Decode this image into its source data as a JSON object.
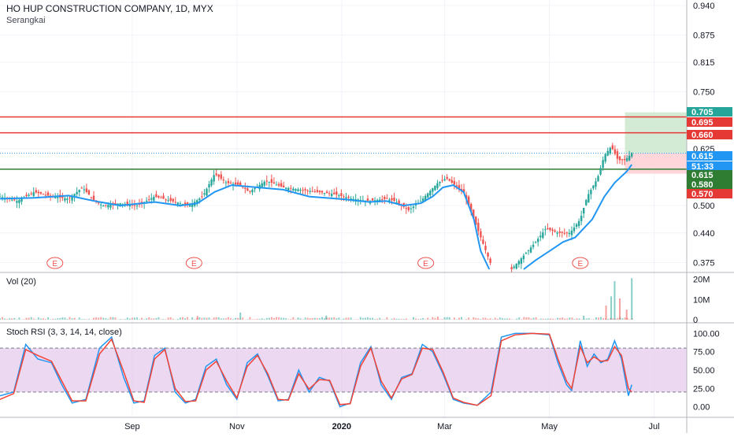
{
  "header": {
    "title": "HO HUP CONSTRUCTION COMPANY, 1D, MYX",
    "subtitle": "Serangkai"
  },
  "panes": {
    "volume_label": "Vol (20)",
    "stoch_label": "Stoch RSI (3, 3, 14, 14, close)"
  },
  "colors": {
    "up": "#26a69a",
    "down": "#ef5350",
    "ma": "#2196f3",
    "stoch_k": "#2196f3",
    "stoch_d": "#f44336",
    "stoch_band": "#e1bee7",
    "hline_red": "#e53935",
    "hline_green": "#2e7d32",
    "target_zone": "#c8e6c9",
    "stop_zone": "#ffcdd2"
  },
  "price_badges": [
    {
      "label": "0.705",
      "color": "#26a69a"
    },
    {
      "label": "0.695",
      "color": "#e53935"
    },
    {
      "label": "0.660",
      "color": "#e53935"
    },
    {
      "label": "0.615",
      "color": "#2196f3"
    },
    {
      "label": "51:33",
      "color": "#2196f3"
    },
    {
      "label": "0.615",
      "color": "#2e7d32"
    },
    {
      "label": "0.580",
      "color": "#2e7d32"
    },
    {
      "label": "0.570",
      "color": "#e53935"
    }
  ],
  "earnings_markers": [
    "E",
    "E",
    "E",
    "E"
  ],
  "chart_data": [
    {
      "type": "candlestick",
      "title": "HO HUP CONSTRUCTION COMPANY, 1D, MYX",
      "y_ticks": [
        "0.940",
        "0.875",
        "0.815",
        "0.750",
        "0.625",
        "0.500",
        "0.440",
        "0.375"
      ],
      "x_ticks": [
        "Sep",
        "Nov",
        "2020",
        "Mar",
        "May",
        "Jul"
      ],
      "ylim": [
        0.36,
        0.945
      ],
      "x_domain_days": [
        -40,
        360
      ],
      "x_tick_days": [
        37,
        98,
        159,
        219,
        280,
        341
      ],
      "earnings_days": [
        -8,
        73,
        208,
        298
      ],
      "horizontal_lines": [
        {
          "price": 0.695,
          "color": "red"
        },
        {
          "price": 0.66,
          "color": "red"
        },
        {
          "price": 0.615,
          "color": "blue-dotted"
        },
        {
          "price": 0.58,
          "color": "green"
        }
      ],
      "position": {
        "entry": 0.615,
        "target": 0.705,
        "stop": 0.57,
        "start_day": 324,
        "end_day": 385
      },
      "ma_segments": [
        [
          [
            -40,
            0.515
          ],
          [
            -20,
            0.517
          ],
          [
            0,
            0.522
          ],
          [
            15,
            0.51
          ],
          [
            30,
            0.5
          ],
          [
            50,
            0.508
          ],
          [
            65,
            0.5
          ],
          [
            75,
            0.505
          ],
          [
            85,
            0.53
          ],
          [
            95,
            0.545
          ],
          [
            110,
            0.54
          ],
          [
            125,
            0.535
          ],
          [
            140,
            0.52
          ],
          [
            160,
            0.514
          ],
          [
            175,
            0.508
          ],
          [
            185,
            0.51
          ],
          [
            195,
            0.5
          ],
          [
            205,
            0.505
          ],
          [
            212,
            0.52
          ],
          [
            218,
            0.54
          ],
          [
            224,
            0.545
          ],
          [
            230,
            0.53
          ],
          [
            236,
            0.47
          ],
          [
            240,
            0.4
          ],
          [
            245,
            0.36
          ]
        ],
        [
          [
            265,
            0.36
          ],
          [
            272,
            0.38
          ],
          [
            280,
            0.4
          ],
          [
            288,
            0.42
          ],
          [
            295,
            0.43
          ],
          [
            305,
            0.47
          ],
          [
            312,
            0.52
          ],
          [
            318,
            0.55
          ],
          [
            325,
            0.575
          ],
          [
            328,
            0.59
          ]
        ]
      ],
      "price_segments": [
        [
          [
            -40,
            0.52
          ],
          [
            -30,
            0.51
          ],
          [
            -20,
            0.53
          ],
          [
            -10,
            0.52
          ],
          [
            0,
            0.515
          ],
          [
            8,
            0.54
          ],
          [
            15,
            0.51
          ],
          [
            20,
            0.5
          ],
          [
            30,
            0.505
          ],
          [
            40,
            0.5
          ],
          [
            50,
            0.52
          ],
          [
            60,
            0.51
          ],
          [
            70,
            0.5
          ],
          [
            78,
            0.52
          ],
          [
            85,
            0.57
          ],
          [
            92,
            0.55
          ],
          [
            100,
            0.545
          ],
          [
            105,
            0.53
          ],
          [
            115,
            0.555
          ],
          [
            125,
            0.54
          ],
          [
            135,
            0.535
          ],
          [
            145,
            0.53
          ],
          [
            155,
            0.525
          ],
          [
            165,
            0.515
          ],
          [
            175,
            0.51
          ],
          [
            185,
            0.515
          ],
          [
            190,
            0.51
          ],
          [
            198,
            0.49
          ],
          [
            205,
            0.51
          ],
          [
            210,
            0.53
          ],
          [
            215,
            0.55
          ],
          [
            220,
            0.56
          ],
          [
            225,
            0.545
          ],
          [
            230,
            0.53
          ],
          [
            235,
            0.48
          ],
          [
            240,
            0.43
          ],
          [
            243,
            0.4
          ],
          [
            246,
            0.37
          ]
        ],
        [
          [
            258,
            0.36
          ],
          [
            265,
            0.39
          ],
          [
            272,
            0.42
          ],
          [
            278,
            0.45
          ],
          [
            285,
            0.44
          ],
          [
            292,
            0.44
          ],
          [
            298,
            0.47
          ],
          [
            302,
            0.52
          ],
          [
            308,
            0.56
          ],
          [
            312,
            0.61
          ],
          [
            316,
            0.63
          ],
          [
            320,
            0.6
          ],
          [
            324,
            0.6
          ],
          [
            328,
            0.615
          ]
        ]
      ],
      "annotations": []
    },
    {
      "type": "bar",
      "title": "Vol (20)",
      "y_ticks": [
        "20M",
        "10M",
        "0"
      ],
      "ylim": [
        0,
        21
      ],
      "unit": "M",
      "bars": [
        {
          "day": 100,
          "value": 3.5
        },
        {
          "day": 75,
          "value": 1.8
        },
        {
          "day": 150,
          "value": 2.0
        },
        {
          "day": 215,
          "value": 1.5
        },
        {
          "day": 300,
          "value": 2.0
        },
        {
          "day": 313,
          "value": 7.0
        },
        {
          "day": 316,
          "value": 11.5
        },
        {
          "day": 318,
          "value": 19.0
        },
        {
          "day": 321,
          "value": 10.5
        },
        {
          "day": 325,
          "value": 5.0
        },
        {
          "day": 328,
          "value": 20.5
        }
      ]
    },
    {
      "type": "line",
      "title": "Stoch RSI (3, 3, 14, 14, close)",
      "y_ticks": [
        "100.00",
        "75.00",
        "50.00",
        "25.00",
        "0.00"
      ],
      "ylim": [
        -8,
        108
      ],
      "band": [
        20,
        80
      ],
      "series": [
        {
          "name": "K",
          "values": [
            [
              -40,
              15
            ],
            [
              -32,
              20
            ],
            [
              -25,
              85
            ],
            [
              -18,
              65
            ],
            [
              -10,
              60
            ],
            [
              -4,
              30
            ],
            [
              2,
              5
            ],
            [
              10,
              10
            ],
            [
              18,
              80
            ],
            [
              25,
              95
            ],
            [
              32,
              40
            ],
            [
              38,
              5
            ],
            [
              44,
              8
            ],
            [
              50,
              70
            ],
            [
              56,
              80
            ],
            [
              62,
              20
            ],
            [
              68,
              5
            ],
            [
              74,
              10
            ],
            [
              80,
              55
            ],
            [
              86,
              65
            ],
            [
              92,
              30
            ],
            [
              98,
              10
            ],
            [
              104,
              60
            ],
            [
              110,
              72
            ],
            [
              116,
              42
            ],
            [
              122,
              8
            ],
            [
              128,
              10
            ],
            [
              134,
              50
            ],
            [
              140,
              20
            ],
            [
              146,
              40
            ],
            [
              152,
              35
            ],
            [
              158,
              0
            ],
            [
              164,
              5
            ],
            [
              170,
              60
            ],
            [
              176,
              82
            ],
            [
              182,
              30
            ],
            [
              188,
              10
            ],
            [
              194,
              40
            ],
            [
              200,
              45
            ],
            [
              206,
              85
            ],
            [
              212,
              75
            ],
            [
              218,
              45
            ],
            [
              224,
              10
            ],
            [
              230,
              5
            ],
            [
              238,
              2
            ],
            [
              246,
              20
            ],
            [
              252,
              95
            ],
            [
              260,
              100
            ],
            [
              270,
              100
            ],
            [
              280,
              98
            ],
            [
              285,
              60
            ],
            [
              290,
              30
            ],
            [
              293,
              22
            ],
            [
              298,
              90
            ],
            [
              302,
              55
            ],
            [
              306,
              72
            ],
            [
              310,
              60
            ],
            [
              314,
              65
            ],
            [
              318,
              90
            ],
            [
              322,
              65
            ],
            [
              326,
              15
            ],
            [
              328,
              30
            ]
          ]
        },
        {
          "name": "D",
          "values": [
            [
              -40,
              10
            ],
            [
              -32,
              18
            ],
            [
              -25,
              78
            ],
            [
              -18,
              70
            ],
            [
              -10,
              62
            ],
            [
              -4,
              35
            ],
            [
              2,
              8
            ],
            [
              10,
              8
            ],
            [
              18,
              72
            ],
            [
              25,
              92
            ],
            [
              32,
              48
            ],
            [
              38,
              8
            ],
            [
              44,
              6
            ],
            [
              50,
              65
            ],
            [
              56,
              78
            ],
            [
              62,
              25
            ],
            [
              68,
              7
            ],
            [
              74,
              8
            ],
            [
              80,
              50
            ],
            [
              86,
              62
            ],
            [
              92,
              35
            ],
            [
              98,
              12
            ],
            [
              104,
              55
            ],
            [
              110,
              70
            ],
            [
              116,
              45
            ],
            [
              122,
              10
            ],
            [
              128,
              9
            ],
            [
              134,
              45
            ],
            [
              140,
              24
            ],
            [
              146,
              37
            ],
            [
              152,
              36
            ],
            [
              158,
              3
            ],
            [
              164,
              4
            ],
            [
              170,
              55
            ],
            [
              176,
              80
            ],
            [
              182,
              35
            ],
            [
              188,
              12
            ],
            [
              194,
              38
            ],
            [
              200,
              44
            ],
            [
              206,
              80
            ],
            [
              212,
              78
            ],
            [
              218,
              48
            ],
            [
              224,
              12
            ],
            [
              230,
              6
            ],
            [
              238,
              2
            ],
            [
              246,
              15
            ],
            [
              252,
              90
            ],
            [
              260,
              98
            ],
            [
              270,
              100
            ],
            [
              280,
              99
            ],
            [
              285,
              65
            ],
            [
              290,
              35
            ],
            [
              293,
              25
            ],
            [
              298,
              82
            ],
            [
              302,
              60
            ],
            [
              306,
              68
            ],
            [
              310,
              62
            ],
            [
              314,
              63
            ],
            [
              318,
              82
            ],
            [
              322,
              70
            ],
            [
              326,
              25
            ],
            [
              328,
              20
            ]
          ]
        }
      ]
    }
  ]
}
